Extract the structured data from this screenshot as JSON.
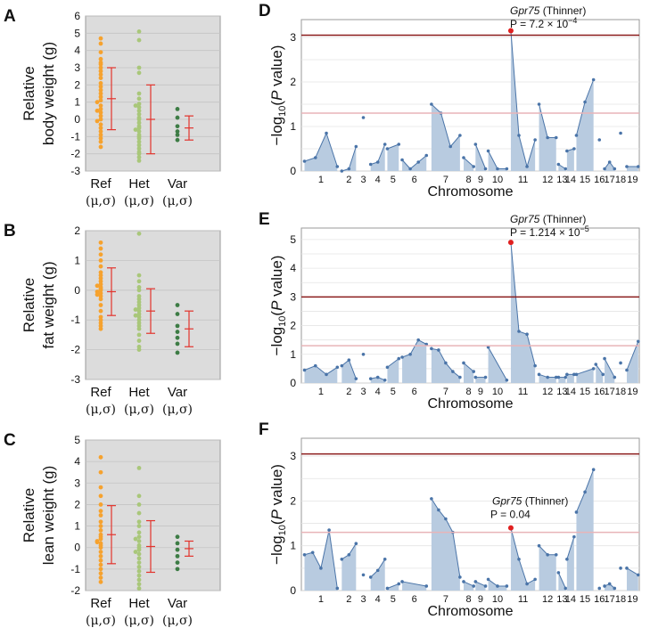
{
  "colors": {
    "ref": "#f6a22e",
    "het": "#a9c77a",
    "var": "#3d7c45",
    "errbar": "#e2332c",
    "dot_area": "#b8cbe0",
    "dot_line": "#4a74a8",
    "threshold_high": "#8b1c1c",
    "threshold_low": "#e8b4b8",
    "peak": "#e02020"
  },
  "chart_data": [
    {
      "panel": "A",
      "type": "scatter",
      "ylabel_lines": [
        "Relative",
        "body weight (g)"
      ],
      "ylim": [
        -3,
        6
      ],
      "yticks": [
        -3,
        -2,
        -1,
        0,
        1,
        2,
        3,
        4,
        5,
        6
      ],
      "groups": [
        {
          "name": "Ref",
          "sub": "(μ,σ)",
          "mean": 1.2,
          "sd": 1.8,
          "values": [
            4.7,
            4.4,
            3.9,
            3.5,
            3.3,
            3.2,
            3.0,
            2.8,
            2.6,
            2.4,
            2.1,
            1.9,
            1.7,
            1.5,
            1.3,
            1.1,
            1.0,
            0.8,
            0.6,
            0.5,
            0.4,
            0.2,
            0.0,
            -0.1,
            -0.3,
            -0.5,
            -0.7,
            -0.9,
            -1.1,
            -1.3,
            -1.6
          ]
        },
        {
          "name": "Het",
          "sub": "(μ,σ)",
          "mean": 0.0,
          "sd": 2.0,
          "values": [
            5.1,
            4.6,
            3.0,
            2.7,
            1.5,
            1.2,
            0.9,
            0.7,
            0.5,
            0.3,
            0.1,
            0.0,
            -0.2,
            -0.4,
            -0.5,
            -0.7,
            -0.9,
            -1.1,
            -1.3,
            -1.5,
            -1.7,
            -1.9,
            -2.0,
            -2.2,
            -2.4,
            0.8,
            -0.6,
            -1.0
          ]
        },
        {
          "name": "Var",
          "sub": "(μ,σ)",
          "mean": -0.5,
          "sd": 0.7,
          "values": [
            0.6,
            0.1,
            -0.4,
            -0.7,
            -0.9,
            -1.2
          ]
        }
      ]
    },
    {
      "panel": "B",
      "type": "scatter",
      "ylabel_lines": [
        "Relative",
        "fat weight (g)"
      ],
      "ylim": [
        -3,
        2
      ],
      "yticks": [
        -3,
        -2,
        -1,
        0,
        1,
        2
      ],
      "groups": [
        {
          "name": "Ref",
          "sub": "(μ,σ)",
          "mean": -0.05,
          "sd": 0.8,
          "values": [
            1.6,
            1.4,
            1.2,
            1.0,
            0.8,
            0.6,
            0.5,
            0.4,
            0.3,
            0.2,
            0.1,
            0.05,
            0.0,
            -0.05,
            -0.1,
            -0.2,
            -0.3,
            -0.5,
            -0.7,
            -0.9,
            -1.0,
            -1.1,
            -1.2,
            -1.3,
            0.15,
            -0.15
          ]
        },
        {
          "name": "Het",
          "sub": "(μ,σ)",
          "mean": -0.7,
          "sd": 0.75,
          "values": [
            1.9,
            0.5,
            0.3,
            0.1,
            0.0,
            -0.2,
            -0.3,
            -0.4,
            -0.5,
            -0.6,
            -0.7,
            -0.8,
            -0.9,
            -1.0,
            -1.1,
            -1.2,
            -1.3,
            -1.5,
            -1.7,
            -1.9,
            -2.0,
            -0.65,
            -0.85
          ]
        },
        {
          "name": "Var",
          "sub": "(μ,σ)",
          "mean": -1.3,
          "sd": 0.6,
          "values": [
            -0.5,
            -0.8,
            -1.2,
            -1.4,
            -1.6,
            -1.8,
            -2.1
          ]
        }
      ]
    },
    {
      "panel": "C",
      "type": "scatter",
      "ylabel_lines": [
        "Relative",
        "lean weight (g)"
      ],
      "ylim": [
        -2,
        5
      ],
      "yticks": [
        -2,
        -1,
        0,
        1,
        2,
        3,
        4,
        5
      ],
      "groups": [
        {
          "name": "Ref",
          "sub": "(μ,σ)",
          "mean": 0.6,
          "sd": 1.35,
          "values": [
            4.2,
            3.5,
            2.8,
            2.4,
            2.0,
            1.7,
            1.5,
            1.2,
            1.0,
            0.8,
            0.6,
            0.4,
            0.3,
            0.2,
            0.1,
            0.0,
            -0.2,
            -0.4,
            -0.6,
            -0.8,
            -1.0,
            -1.2,
            -1.4,
            -1.6,
            0.5,
            0.25
          ]
        },
        {
          "name": "Het",
          "sub": "(μ,σ)",
          "mean": 0.05,
          "sd": 1.2,
          "values": [
            3.7,
            2.4,
            2.0,
            1.6,
            1.2,
            1.0,
            0.7,
            0.5,
            0.3,
            0.1,
            0.0,
            -0.1,
            -0.3,
            -0.5,
            -0.7,
            -0.9,
            -1.1,
            -1.3,
            -1.5,
            -1.7,
            -1.9,
            0.4,
            -0.2
          ]
        },
        {
          "name": "Var",
          "sub": "(μ,σ)",
          "mean": -0.05,
          "sd": 0.35,
          "values": [
            0.5,
            0.2,
            -0.1,
            -0.4,
            -0.7,
            -1.0
          ]
        }
      ]
    },
    {
      "panel": "D",
      "type": "line",
      "ylabel": "−log10(P value)",
      "xlabel": "Chromosome",
      "ylim": [
        0,
        3.4
      ],
      "yticks": [
        0,
        1,
        2,
        3
      ],
      "threshold_high": 3.05,
      "threshold_low": 1.3,
      "chr_labels": [
        "1",
        "2",
        "3",
        "4",
        "5",
        "6",
        "7",
        "8",
        "9",
        "10",
        "11",
        "12",
        "13",
        "14",
        "15",
        "16",
        "17",
        "18",
        "19"
      ],
      "peak_gene": "Gpr75",
      "peak_alias": "(Thinner)",
      "peak_p": "P = 7.2 × 10",
      "peak_exp": "−4",
      "peak_chr": 11,
      "peak_value": 3.15
    },
    {
      "panel": "E",
      "type": "line",
      "ylabel": "−log10(P value)",
      "xlabel": "Chromosome",
      "ylim": [
        0,
        5.4
      ],
      "yticks": [
        0,
        1,
        2,
        3,
        4,
        5
      ],
      "threshold_high": 3.0,
      "threshold_low": 1.3,
      "chr_labels": [
        "1",
        "2",
        "3",
        "4",
        "5",
        "6",
        "7",
        "8",
        "9",
        "10",
        "11",
        "12",
        "13",
        "14",
        "15",
        "16",
        "17",
        "18",
        "19"
      ],
      "peak_gene": "Gpr75",
      "peak_alias": "(Thinner)",
      "peak_p": "P = 1.214 × 10",
      "peak_exp": "−5",
      "peak_chr": 11,
      "peak_value": 4.9
    },
    {
      "panel": "F",
      "type": "line",
      "ylabel": "−log10(P value)",
      "xlabel": "Chromosome",
      "ylim": [
        0,
        3.4
      ],
      "yticks": [
        0,
        1,
        2,
        3
      ],
      "threshold_high": 3.05,
      "threshold_low": 1.3,
      "chr_labels": [
        "1",
        "2",
        "3",
        "4",
        "5",
        "6",
        "7",
        "8",
        "9",
        "10",
        "11",
        "12",
        "13",
        "14",
        "15",
        "16",
        "17",
        "18",
        "19"
      ],
      "peak_gene": "Gpr75",
      "peak_alias": "(Thinner)",
      "peak_p": "P = 0.04",
      "peak_exp": "",
      "peak_chr": 11,
      "peak_value": 1.4
    }
  ],
  "manhattan_series": {
    "D": [
      [
        0.22,
        0.3,
        0.85,
        0.1
      ],
      [
        0.0,
        0.05,
        0.55
      ],
      [
        1.2
      ],
      [
        0.15,
        0.2,
        0.6
      ],
      [
        0.5,
        0.6
      ],
      [
        0.25,
        0.05,
        0.2,
        0.35
      ],
      [
        1.5,
        1.3,
        0.55,
        0.8
      ],
      [
        0.3,
        0.1
      ],
      [
        0.6,
        0.05
      ],
      [
        0.45,
        0.05,
        0.05
      ],
      [
        3.15,
        0.8,
        0.1,
        0.7
      ],
      [
        1.5,
        0.75,
        0.75
      ],
      [
        0.15,
        0.05
      ],
      [
        0.45,
        0.5
      ],
      [
        0.8,
        1.55,
        2.05
      ],
      [
        0.7
      ],
      [
        0.05,
        0.2,
        0.05
      ],
      [
        0.85
      ],
      [
        0.1,
        0.1
      ]
    ],
    "E": [
      [
        0.45,
        0.6,
        0.3,
        0.55
      ],
      [
        0.6,
        0.8,
        0.15
      ],
      [
        1.0
      ],
      [
        0.15,
        0.2,
        0.1
      ],
      [
        0.55,
        0.85
      ],
      [
        0.9,
        1.0,
        1.5,
        1.35
      ],
      [
        1.2,
        1.15,
        0.7,
        0.4,
        0.2
      ],
      [
        0.7,
        0.4
      ],
      [
        0.2,
        0.2
      ],
      [
        1.25,
        0.1
      ],
      [
        4.9,
        1.8,
        1.7,
        0.6
      ],
      [
        0.3,
        0.2,
        0.2
      ],
      [
        0.2,
        0.2
      ],
      [
        0.3,
        0.3
      ],
      [
        0.3,
        0.5
      ],
      [
        0.65,
        0.3
      ],
      [
        0.85,
        0.2
      ],
      [
        0.7
      ],
      [
        0.45,
        1.45
      ]
    ],
    "F": [
      [
        0.8,
        0.85,
        0.5,
        1.35,
        0.05
      ],
      [
        0.7,
        0.8,
        1.05
      ],
      [
        0.35
      ],
      [
        0.3,
        0.45,
        0.7
      ],
      [
        0.05,
        0.15
      ],
      [
        0.2,
        0.1
      ],
      [
        2.05,
        1.8,
        1.6,
        1.3,
        0.3
      ],
      [
        0.2,
        0.1
      ],
      [
        0.2,
        0.1
      ],
      [
        0.25,
        0.1,
        0.1
      ],
      [
        1.4,
        0.7,
        0.15,
        0.25
      ],
      [
        1.0,
        0.8,
        0.8
      ],
      [
        0.4,
        0.05
      ],
      [
        0.7,
        1.2
      ],
      [
        1.75,
        2.2,
        2.7
      ],
      [
        0.05
      ],
      [
        0.1,
        0.15,
        0.05
      ],
      [
        0.5
      ],
      [
        0.5,
        0.35
      ]
    ]
  },
  "peak_index": {
    "D": [
      10,
      0
    ],
    "E": [
      10,
      0
    ],
    "F": [
      10,
      0
    ]
  }
}
